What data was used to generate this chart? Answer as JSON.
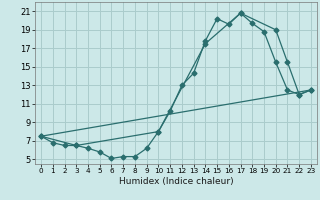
{
  "xlabel": "Humidex (Indice chaleur)",
  "bg_color": "#cce8e8",
  "grid_color": "#aacccc",
  "line_color": "#2a6e6e",
  "xlim": [
    -0.5,
    23.5
  ],
  "ylim": [
    4.5,
    22.0
  ],
  "xticks": [
    0,
    1,
    2,
    3,
    4,
    5,
    6,
    7,
    8,
    9,
    10,
    11,
    12,
    13,
    14,
    15,
    16,
    17,
    18,
    19,
    20,
    21,
    22,
    23
  ],
  "yticks": [
    5,
    7,
    9,
    11,
    13,
    15,
    17,
    19,
    21
  ],
  "line1_x": [
    0,
    1,
    2,
    3,
    4,
    5,
    6,
    7,
    8,
    9,
    10,
    11,
    12,
    13,
    14,
    15,
    16,
    17,
    18,
    19,
    20,
    21,
    22,
    23
  ],
  "line1_y": [
    7.5,
    6.8,
    6.5,
    6.5,
    6.2,
    5.8,
    5.1,
    5.3,
    5.3,
    6.2,
    8.0,
    10.2,
    13.0,
    14.3,
    17.8,
    20.2,
    19.6,
    20.8,
    19.7,
    18.8,
    15.5,
    12.5,
    12.0,
    12.5
  ],
  "line2_x": [
    0,
    3,
    10,
    14,
    17,
    20,
    21,
    22,
    23
  ],
  "line2_y": [
    7.5,
    6.5,
    8.0,
    17.5,
    20.8,
    19.0,
    15.5,
    12.0,
    12.5
  ],
  "line3_x": [
    0,
    23
  ],
  "line3_y": [
    7.5,
    12.5
  ],
  "xlabel_fontsize": 6.5,
  "tick_fontsize_x": 5.2,
  "tick_fontsize_y": 6.0
}
